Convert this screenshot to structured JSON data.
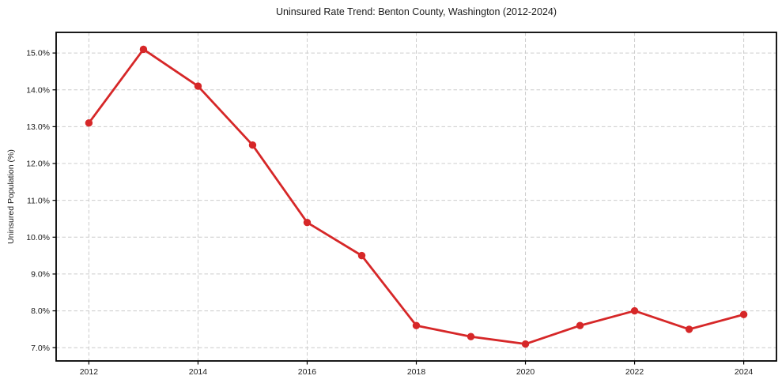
{
  "chart_data": {
    "type": "line",
    "title": "Uninsured Rate Trend: Benton County, Washington (2012-2024)",
    "xlabel": "",
    "ylabel": "Uninsured Population (%)",
    "x": [
      2012,
      2013,
      2014,
      2015,
      2016,
      2017,
      2018,
      2019,
      2020,
      2021,
      2022,
      2023,
      2024
    ],
    "values": [
      13.1,
      15.1,
      14.1,
      12.5,
      10.4,
      9.5,
      7.6,
      7.3,
      7.1,
      7.6,
      8.0,
      7.5,
      7.9
    ],
    "x_ticks": [
      2012,
      2014,
      2016,
      2018,
      2020,
      2022,
      2024
    ],
    "x_tick_labels": [
      "2012",
      "2014",
      "2016",
      "2018",
      "2020",
      "2022",
      "2024"
    ],
    "y_ticks": [
      7,
      8,
      9,
      10,
      11,
      12,
      13,
      14,
      15
    ],
    "y_tick_labels": [
      "7.0%",
      "8.0%",
      "9.0%",
      "10.0%",
      "11.0%",
      "12.0%",
      "13.0%",
      "14.0%",
      "15.0%"
    ],
    "xlim": [
      2011.4,
      2024.6
    ],
    "ylim": [
      6.64,
      15.56
    ],
    "grid": true,
    "grid_style": "dashed",
    "legend": "none",
    "line_color": "#d62728",
    "marker": "circle",
    "grid_color": "#cccccc",
    "axis_color": "#000000",
    "text_color": "#1a1a1a"
  }
}
